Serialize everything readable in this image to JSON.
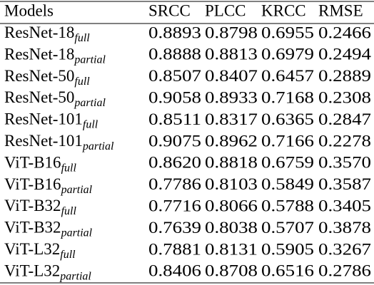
{
  "table": {
    "header": [
      "Models",
      "SRCC",
      "PLCC",
      "KRCC",
      "RMSE"
    ],
    "rows": [
      {
        "name": "ResNet-18",
        "sub": "full",
        "values": [
          "0.8893",
          "0.8798",
          "0.6955",
          "0.2466"
        ]
      },
      {
        "name": "ResNet-18",
        "sub": "partial",
        "values": [
          "0.8888",
          "0.8813",
          "0.6979",
          "0.2494"
        ]
      },
      {
        "name": "ResNet-50",
        "sub": "full",
        "values": [
          "0.8507",
          "0.8407",
          "0.6457",
          "0.2889"
        ]
      },
      {
        "name": "ResNet-50",
        "sub": "partial",
        "values": [
          "0.9058",
          "0.8933",
          "0.7168",
          "0.2308"
        ]
      },
      {
        "name": "ResNet-101",
        "sub": "full",
        "values": [
          "0.8511",
          "0.8317",
          "0.6365",
          "0.2847"
        ]
      },
      {
        "name": "ResNet-101",
        "sub": "partial",
        "values": [
          "0.9075",
          "0.8962",
          "0.7166",
          "0.2278"
        ]
      },
      {
        "name": "ViT-B16",
        "sub": "full",
        "values": [
          "0.8620",
          "0.8818",
          "0.6759",
          "0.3570"
        ]
      },
      {
        "name": "ViT-B16",
        "sub": "partial",
        "values": [
          "0.7786",
          "0.8103",
          "0.5849",
          "0.3587"
        ]
      },
      {
        "name": "ViT-B32",
        "sub": "full",
        "values": [
          "0.7716",
          "0.8066",
          "0.5788",
          "0.3405"
        ]
      },
      {
        "name": "ViT-B32",
        "sub": "partial",
        "values": [
          "0.7639",
          "0.8038",
          "0.5707",
          "0.3878"
        ]
      },
      {
        "name": "ViT-L32",
        "sub": "full",
        "values": [
          "0.7881",
          "0.8131",
          "0.5905",
          "0.3267"
        ]
      },
      {
        "name": "ViT-L32",
        "sub": "partial",
        "values": [
          "0.8406",
          "0.8708",
          "0.6516",
          "0.2786"
        ]
      }
    ]
  }
}
